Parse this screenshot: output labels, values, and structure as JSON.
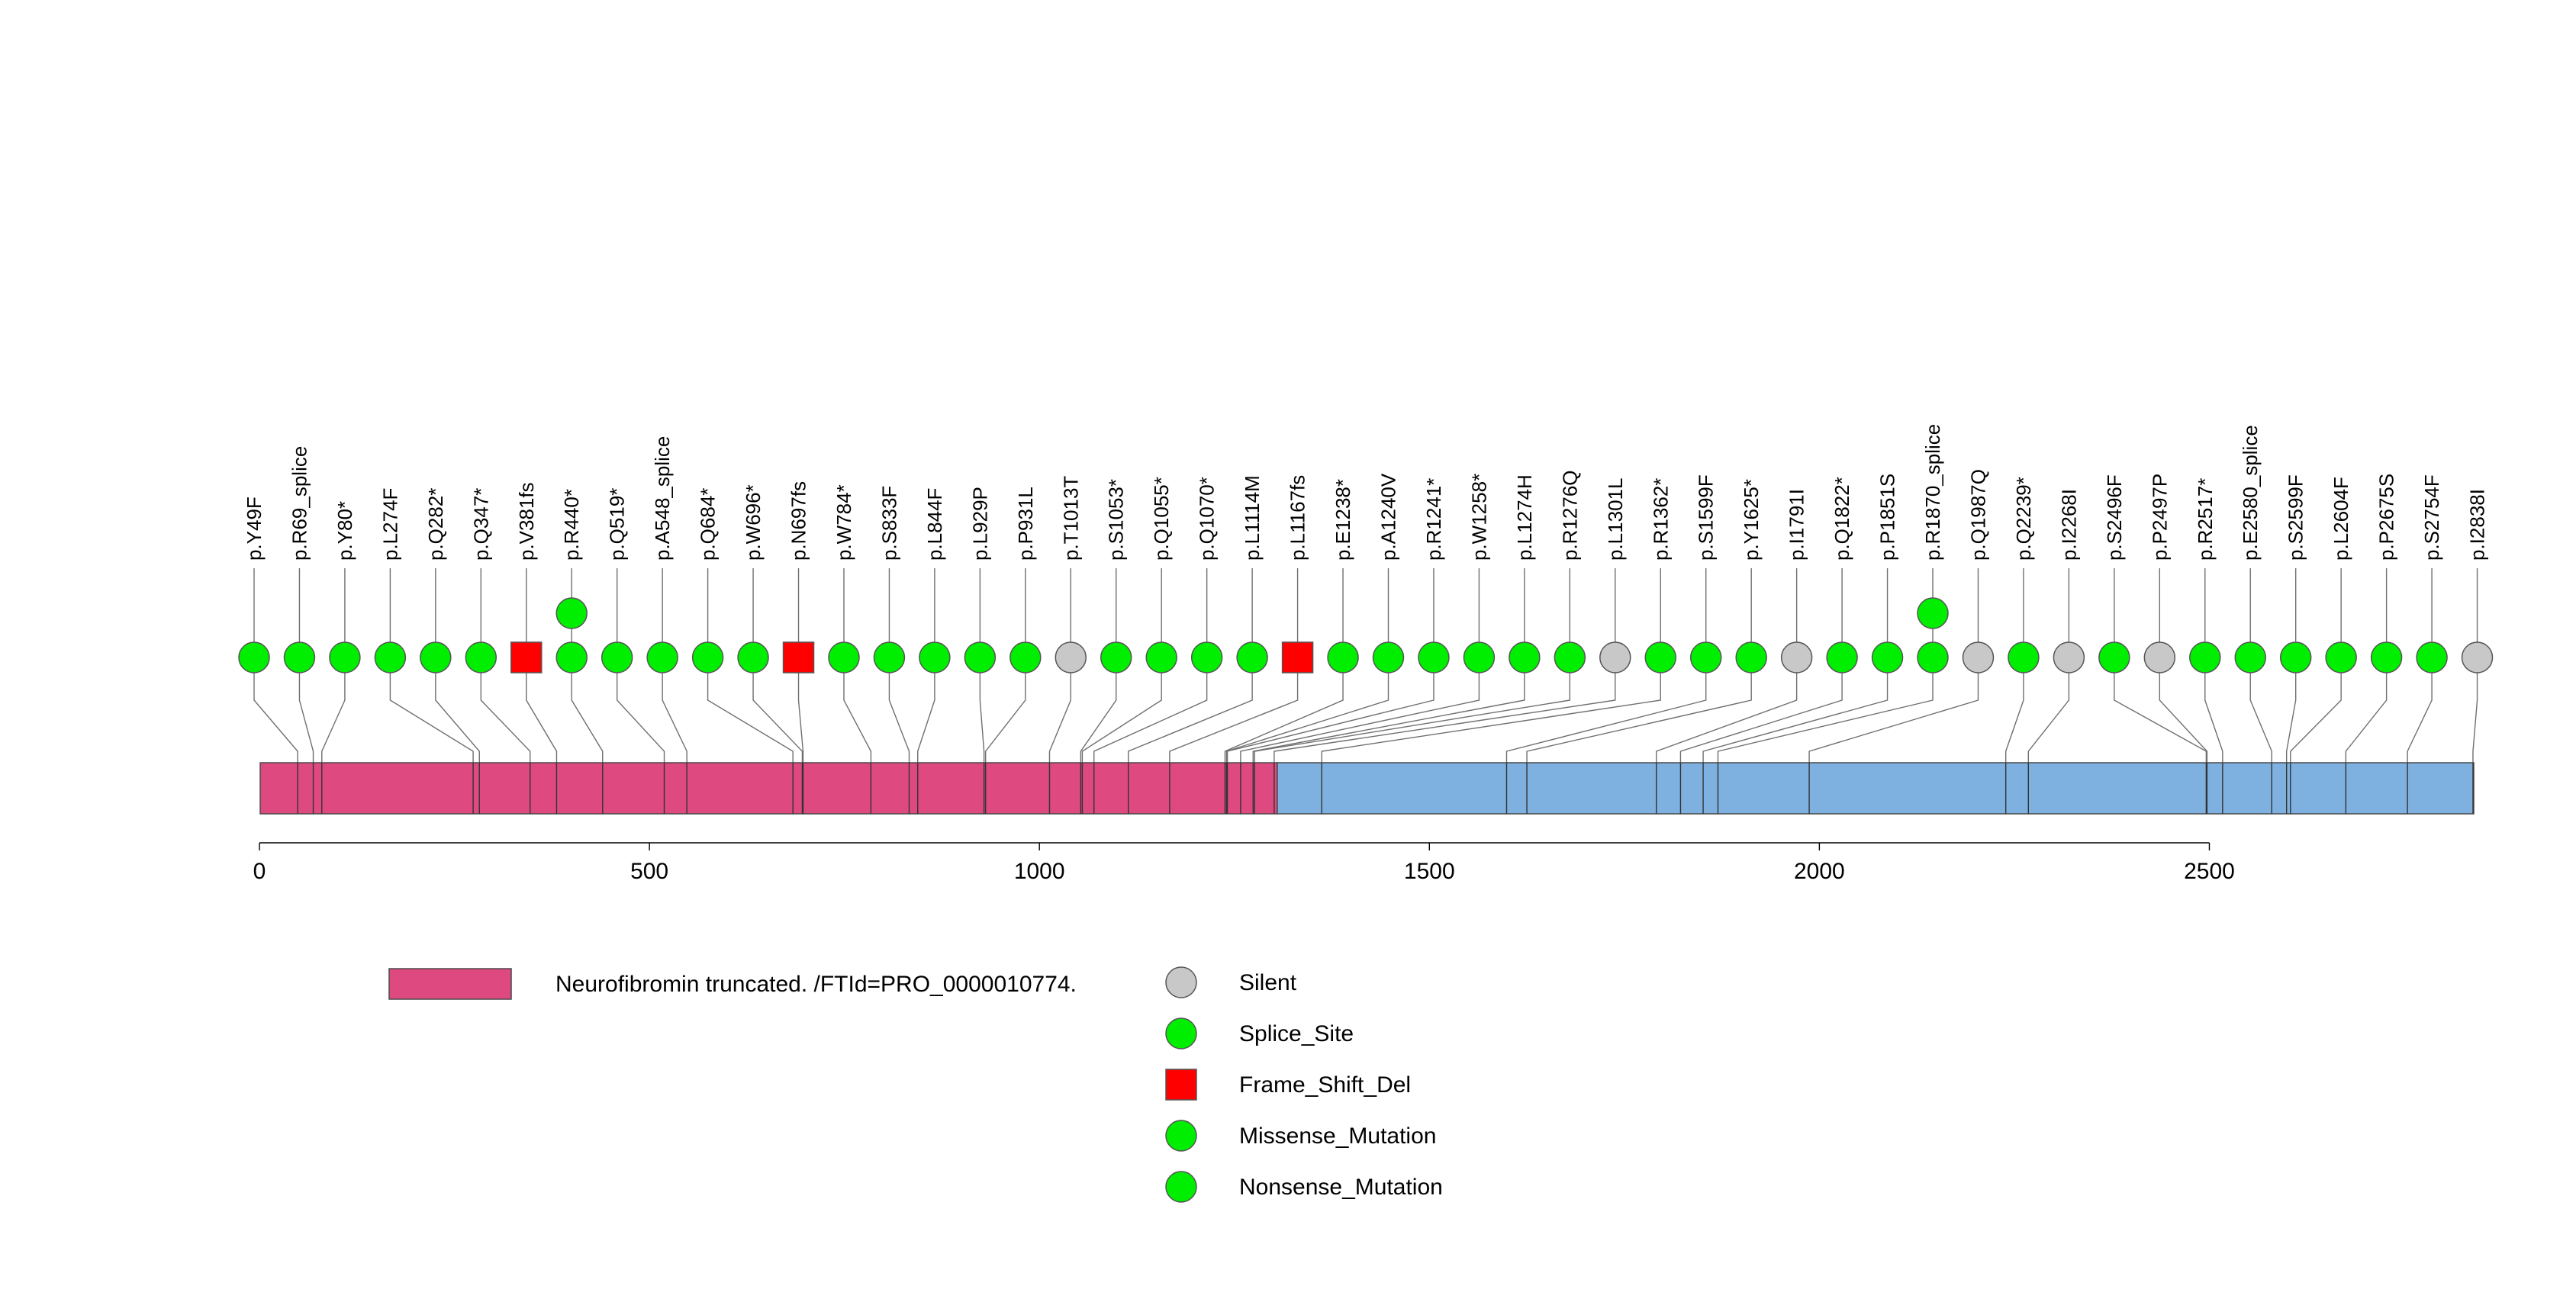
{
  "chart_data": {
    "type": "lollipop",
    "axis": {
      "min": 0,
      "max": 2839,
      "ticks": [
        0,
        500,
        1000,
        1500,
        2000,
        2500
      ]
    },
    "domains": [
      {
        "label": "Neurofibromin truncated. /FTId=PRO_0000010774.",
        "start": 1,
        "end": 1305,
        "color": "#de4a7f"
      },
      {
        "label": "",
        "start": 1305,
        "end": 2839,
        "color": "#7eb1e0"
      }
    ],
    "mutations": [
      {
        "label": "p.Y49F",
        "position": 49,
        "type": "Missense_Mutation",
        "count": 1
      },
      {
        "label": "p.R69_splice",
        "position": 69,
        "type": "Splice_Site",
        "count": 1
      },
      {
        "label": "p.Y80*",
        "position": 80,
        "type": "Nonsense_Mutation",
        "count": 1
      },
      {
        "label": "p.L274F",
        "position": 274,
        "type": "Missense_Mutation",
        "count": 1
      },
      {
        "label": "p.Q282*",
        "position": 282,
        "type": "Nonsense_Mutation",
        "count": 1
      },
      {
        "label": "p.Q347*",
        "position": 347,
        "type": "Nonsense_Mutation",
        "count": 1
      },
      {
        "label": "p.V381fs",
        "position": 381,
        "type": "Frame_Shift_Del",
        "count": 1
      },
      {
        "label": "p.R440*",
        "position": 440,
        "type": "Nonsense_Mutation",
        "count": 2
      },
      {
        "label": "p.Q519*",
        "position": 519,
        "type": "Nonsense_Mutation",
        "count": 1
      },
      {
        "label": "p.A548_splice",
        "position": 548,
        "type": "Splice_Site",
        "count": 1
      },
      {
        "label": "p.Q684*",
        "position": 684,
        "type": "Nonsense_Mutation",
        "count": 1
      },
      {
        "label": "p.W696*",
        "position": 696,
        "type": "Nonsense_Mutation",
        "count": 1
      },
      {
        "label": "p.N697fs",
        "position": 697,
        "type": "Frame_Shift_Del",
        "count": 1
      },
      {
        "label": "p.W784*",
        "position": 784,
        "type": "Nonsense_Mutation",
        "count": 1
      },
      {
        "label": "p.S833F",
        "position": 833,
        "type": "Missense_Mutation",
        "count": 1
      },
      {
        "label": "p.L844F",
        "position": 844,
        "type": "Missense_Mutation",
        "count": 1
      },
      {
        "label": "p.L929P",
        "position": 929,
        "type": "Missense_Mutation",
        "count": 1
      },
      {
        "label": "p.P931L",
        "position": 931,
        "type": "Missense_Mutation",
        "count": 1
      },
      {
        "label": "p.T1013T",
        "position": 1013,
        "type": "Silent",
        "count": 1
      },
      {
        "label": "p.S1053*",
        "position": 1053,
        "type": "Nonsense_Mutation",
        "count": 1
      },
      {
        "label": "p.Q1055*",
        "position": 1055,
        "type": "Nonsense_Mutation",
        "count": 1
      },
      {
        "label": "p.Q1070*",
        "position": 1070,
        "type": "Nonsense_Mutation",
        "count": 1
      },
      {
        "label": "p.L1114M",
        "position": 1114,
        "type": "Missense_Mutation",
        "count": 1
      },
      {
        "label": "p.L1167fs",
        "position": 1167,
        "type": "Frame_Shift_Del",
        "count": 1
      },
      {
        "label": "p.E1238*",
        "position": 1238,
        "type": "Nonsense_Mutation",
        "count": 1
      },
      {
        "label": "p.A1240V",
        "position": 1240,
        "type": "Missense_Mutation",
        "count": 1
      },
      {
        "label": "p.R1241*",
        "position": 1241,
        "type": "Nonsense_Mutation",
        "count": 1
      },
      {
        "label": "p.W1258*",
        "position": 1258,
        "type": "Nonsense_Mutation",
        "count": 1
      },
      {
        "label": "p.L1274H",
        "position": 1274,
        "type": "Missense_Mutation",
        "count": 1
      },
      {
        "label": "p.R1276Q",
        "position": 1276,
        "type": "Missense_Mutation",
        "count": 1
      },
      {
        "label": "p.L1301L",
        "position": 1301,
        "type": "Silent",
        "count": 1
      },
      {
        "label": "p.R1362*",
        "position": 1362,
        "type": "Nonsense_Mutation",
        "count": 1
      },
      {
        "label": "p.S1599F",
        "position": 1599,
        "type": "Missense_Mutation",
        "count": 1
      },
      {
        "label": "p.Y1625*",
        "position": 1625,
        "type": "Nonsense_Mutation",
        "count": 1
      },
      {
        "label": "p.I1791I",
        "position": 1791,
        "type": "Silent",
        "count": 1
      },
      {
        "label": "p.Q1822*",
        "position": 1822,
        "type": "Nonsense_Mutation",
        "count": 1
      },
      {
        "label": "p.P1851S",
        "position": 1851,
        "type": "Missense_Mutation",
        "count": 1
      },
      {
        "label": "p.R1870_splice",
        "position": 1870,
        "type": "Splice_Site",
        "count": 2
      },
      {
        "label": "p.Q1987Q",
        "position": 1987,
        "type": "Silent",
        "count": 1
      },
      {
        "label": "p.Q2239*",
        "position": 2239,
        "type": "Nonsense_Mutation",
        "count": 1
      },
      {
        "label": "p.I2268I",
        "position": 2268,
        "type": "Silent",
        "count": 1
      },
      {
        "label": "p.S2496F",
        "position": 2496,
        "type": "Missense_Mutation",
        "count": 1
      },
      {
        "label": "p.P2497P",
        "position": 2497,
        "type": "Silent",
        "count": 1
      },
      {
        "label": "p.R2517*",
        "position": 2517,
        "type": "Nonsense_Mutation",
        "count": 1
      },
      {
        "label": "p.E2580_splice",
        "position": 2580,
        "type": "Splice_Site",
        "count": 1
      },
      {
        "label": "p.S2599F",
        "position": 2599,
        "type": "Missense_Mutation",
        "count": 1
      },
      {
        "label": "p.L2604F",
        "position": 2604,
        "type": "Missense_Mutation",
        "count": 1
      },
      {
        "label": "p.P2675S",
        "position": 2675,
        "type": "Missense_Mutation",
        "count": 1
      },
      {
        "label": "p.S2754F",
        "position": 2754,
        "type": "Missense_Mutation",
        "count": 1
      },
      {
        "label": "p.I2838I",
        "position": 2838,
        "type": "Silent",
        "count": 1
      }
    ],
    "legend": {
      "domains": [
        {
          "label": "Neurofibromin truncated. /FTId=PRO_0000010774.",
          "color": "#de4a7f"
        }
      ],
      "mutation_types": [
        {
          "label": "Silent",
          "shape": "circle",
          "color": "#c8c8c8"
        },
        {
          "label": "Splice_Site",
          "shape": "circle",
          "color": "#00ee00"
        },
        {
          "label": "Frame_Shift_Del",
          "shape": "square",
          "color": "#ff0000"
        },
        {
          "label": "Missense_Mutation",
          "shape": "circle",
          "color": "#00ee00"
        },
        {
          "label": "Nonsense_Mutation",
          "shape": "circle",
          "color": "#00ee00"
        }
      ]
    },
    "type_colors": {
      "Silent": "#c8c8c8",
      "Splice_Site": "#00ee00",
      "Frame_Shift_Del": "#ff0000",
      "Missense_Mutation": "#00ee00",
      "Nonsense_Mutation": "#00ee00"
    }
  }
}
